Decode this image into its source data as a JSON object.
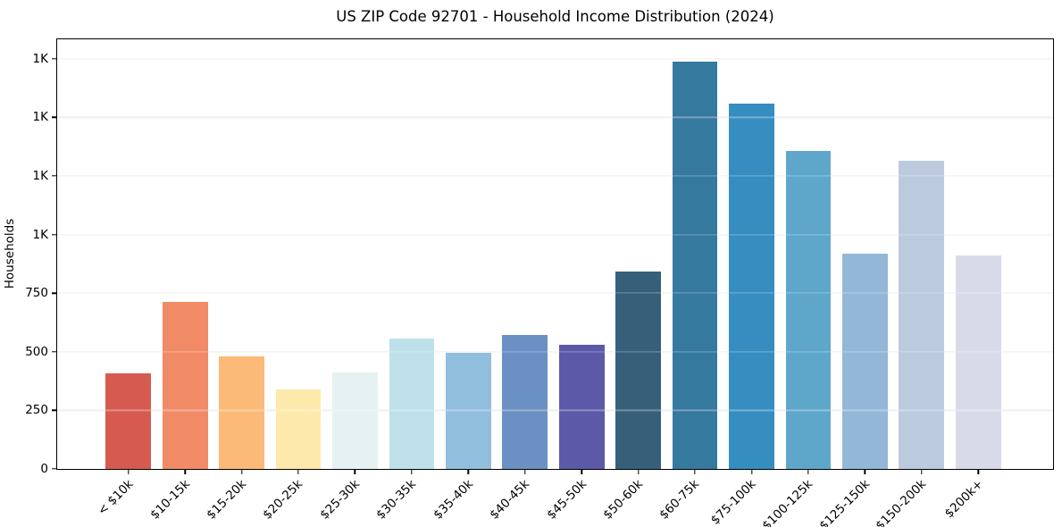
{
  "chart_data": {
    "type": "bar",
    "title": "US ZIP Code 92701 - Household Income Distribution (2024)",
    "xlabel": "",
    "ylabel": "Households",
    "categories": [
      "< $10k",
      "$10-15k",
      "$15-20k",
      "$20-25k",
      "$25-30k",
      "$30-35k",
      "$35-40k",
      "$40-45k",
      "$45-50k",
      "$50-60k",
      "$60-75k",
      "$75-100k",
      "$100-125k",
      "$125-150k",
      "$150-200k",
      "$200k+"
    ],
    "values": [
      408,
      714,
      479,
      338,
      413,
      555,
      494,
      573,
      528,
      844,
      1737,
      1560,
      1357,
      918,
      1313,
      912
    ],
    "bar_colors": [
      "#d65a50",
      "#f18b67",
      "#fcba78",
      "#fde9ab",
      "#e6f2f1",
      "#bee0eb",
      "#92bedd",
      "#6b90c3",
      "#5c59a9",
      "#36607a",
      "#36799f",
      "#368dc0",
      "#5ea7cb",
      "#93b7d8",
      "#bccade",
      "#d9dae9"
    ],
    "ylim": [
      0,
      1833
    ],
    "yticks": [
      {
        "value": 0,
        "label": "0"
      },
      {
        "value": 250,
        "label": "250"
      },
      {
        "value": 500,
        "label": "500"
      },
      {
        "value": 750,
        "label": "750"
      },
      {
        "value": 1000,
        "label": "1K"
      },
      {
        "value": 1250,
        "label": "1K"
      },
      {
        "value": 1500,
        "label": "1K"
      },
      {
        "value": 1750,
        "label": "1K"
      }
    ],
    "grid": "horizontal",
    "legend": "none",
    "axis_color": "#000000",
    "grid_color": "#e7e7e7",
    "background_color": "#ffffff"
  }
}
